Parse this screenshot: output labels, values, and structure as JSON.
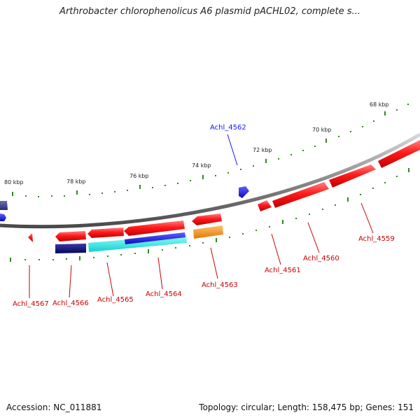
{
  "title": "Arthrobacter chlorophenolicus A6 plasmid pACHL02, complete s...",
  "footer": {
    "accession": "Accession: NC_011881",
    "summary": "Topology: circular; Length: 158,475 bp; Genes: 151"
  },
  "colors": {
    "backbone": "#8a8a8a",
    "tick": "#2e8b1e",
    "gene_red": "#ff1a1a",
    "gene_red_label": "#cc0000",
    "gene_blue": "#1414ff",
    "gene_navy": "#0c0c80",
    "gene_cyan": "#19f3f3",
    "gene_orange": "#ff9a1a",
    "gene_slate": "#3a3a8a"
  },
  "diagram": {
    "type": "circular-genome-map",
    "kbp_labels": [
      "68 kbp",
      "70 kbp",
      "72 kbp",
      "74 kbp",
      "76 kbp",
      "78 kbp",
      "80 kbp"
    ],
    "gene_labels": [
      {
        "name": "Achl_4567",
        "color": "red"
      },
      {
        "name": "Achl_4566",
        "color": "red"
      },
      {
        "name": "Achl_4565",
        "color": "red"
      },
      {
        "name": "Achl_4564",
        "color": "red"
      },
      {
        "name": "Achl_4563",
        "color": "red"
      },
      {
        "name": "Achl_4561",
        "color": "red"
      },
      {
        "name": "Achl_4560",
        "color": "red"
      },
      {
        "name": "Achl_4559",
        "color": "red"
      },
      {
        "name": "Achl_4562",
        "color": "blue"
      }
    ]
  }
}
